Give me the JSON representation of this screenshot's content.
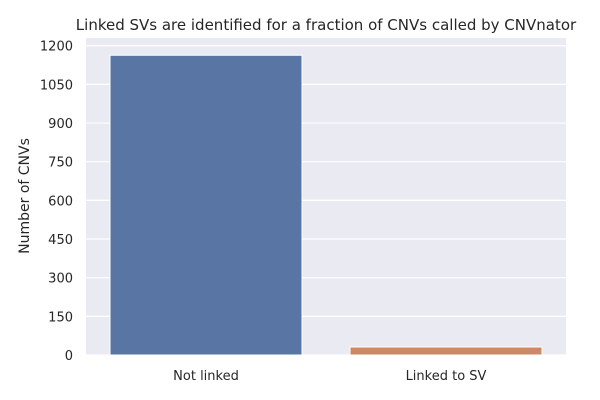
{
  "chart_data": {
    "type": "bar",
    "title": "Linked SVs are identified for a fraction of CNVs called by CNVnator",
    "xlabel": "",
    "ylabel": "Number of CNVs",
    "categories": [
      "Not linked",
      "Linked to SV"
    ],
    "values": [
      1163,
      31
    ],
    "ylim": [
      0,
      1230
    ],
    "yticks": [
      0,
      150,
      300,
      450,
      600,
      750,
      900,
      1050,
      1200
    ],
    "colors": [
      "#5875a4",
      "#cc8963"
    ],
    "background": "#eaeaf2",
    "grid": true,
    "legend": "none"
  }
}
